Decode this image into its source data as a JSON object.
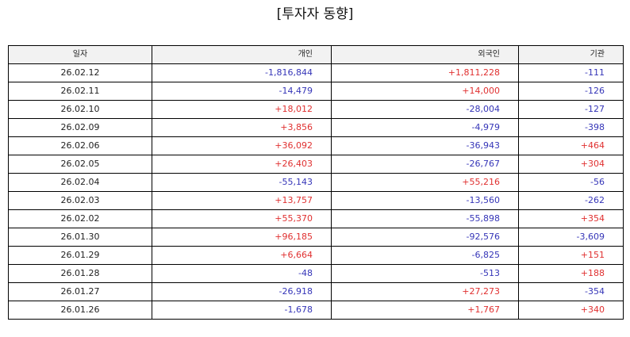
{
  "title": "[투자자 동향]",
  "colors": {
    "positive": "#e03030",
    "negative": "#3535b8"
  },
  "table": {
    "headers": {
      "date": "일자",
      "individual": "개인",
      "foreign": "외국인",
      "institution": "기관"
    },
    "rows": [
      {
        "date": "26.02.12",
        "individual": "-1,816,844",
        "foreign": "+1,811,228",
        "institution": "-111"
      },
      {
        "date": "26.02.11",
        "individual": "-14,479",
        "foreign": "+14,000",
        "institution": "-126"
      },
      {
        "date": "26.02.10",
        "individual": "+18,012",
        "foreign": "-28,004",
        "institution": "-127"
      },
      {
        "date": "26.02.09",
        "individual": "+3,856",
        "foreign": "-4,979",
        "institution": "-398"
      },
      {
        "date": "26.02.06",
        "individual": "+36,092",
        "foreign": "-36,943",
        "institution": "+464"
      },
      {
        "date": "26.02.05",
        "individual": "+26,403",
        "foreign": "-26,767",
        "institution": "+304"
      },
      {
        "date": "26.02.04",
        "individual": "-55,143",
        "foreign": "+55,216",
        "institution": "-56"
      },
      {
        "date": "26.02.03",
        "individual": "+13,757",
        "foreign": "-13,560",
        "institution": "-262"
      },
      {
        "date": "26.02.02",
        "individual": "+55,370",
        "foreign": "-55,898",
        "institution": "+354"
      },
      {
        "date": "26.01.30",
        "individual": "+96,185",
        "foreign": "-92,576",
        "institution": "-3,609"
      },
      {
        "date": "26.01.29",
        "individual": "+6,664",
        "foreign": "-6,825",
        "institution": "+151"
      },
      {
        "date": "26.01.28",
        "individual": "-48",
        "foreign": "-513",
        "institution": "+188"
      },
      {
        "date": "26.01.27",
        "individual": "-26,918",
        "foreign": "+27,273",
        "institution": "-354"
      },
      {
        "date": "26.01.26",
        "individual": "-1,678",
        "foreign": "+1,767",
        "institution": "+340"
      }
    ]
  }
}
